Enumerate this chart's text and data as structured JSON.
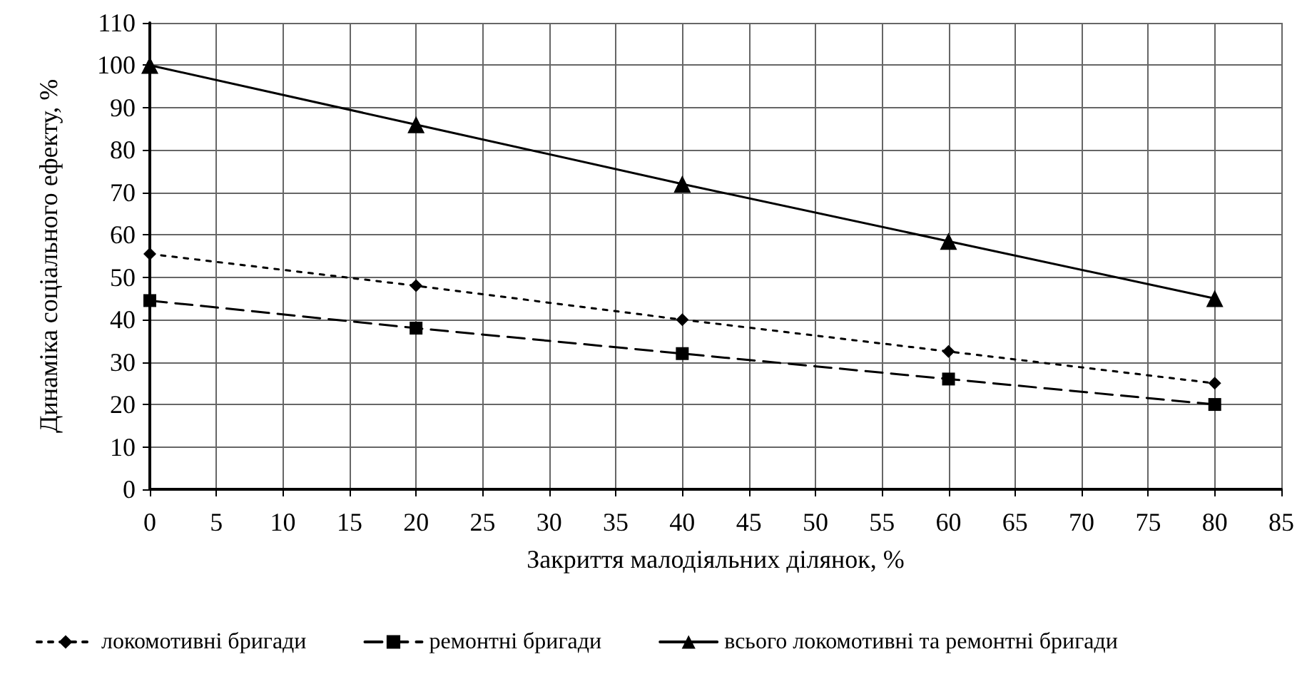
{
  "chart_data": {
    "type": "line",
    "xlabel": "Закриття малодіяльних ділянок, %",
    "ylabel": "Динаміка соціального ефекту, %",
    "x": [
      0,
      20,
      40,
      60,
      80
    ],
    "series": [
      {
        "name": "локомотивні бригади",
        "color": "#000000",
        "values": [
          55.5,
          48,
          40,
          32.5,
          25
        ],
        "marker": "diamond",
        "line_style": "dotted"
      },
      {
        "name": "ремонтні бригади",
        "color": "#000000",
        "values": [
          44.5,
          38,
          32,
          26,
          20
        ],
        "marker": "square",
        "line_style": "dashed"
      },
      {
        "name": "всього локомотивні та ремонтні бригади",
        "color": "#000000",
        "values": [
          100,
          86,
          72,
          58.5,
          45
        ],
        "marker": "triangle",
        "line_style": "solid"
      }
    ],
    "xlim": [
      0,
      85
    ],
    "xticks": [
      0,
      5,
      10,
      15,
      20,
      25,
      30,
      35,
      40,
      45,
      50,
      55,
      60,
      65,
      70,
      75,
      80,
      85
    ],
    "ylim": [
      0,
      110
    ],
    "yticks": [
      0,
      10,
      20,
      30,
      40,
      50,
      60,
      70,
      80,
      90,
      100,
      110
    ],
    "grid": true,
    "legend": "bottom"
  }
}
